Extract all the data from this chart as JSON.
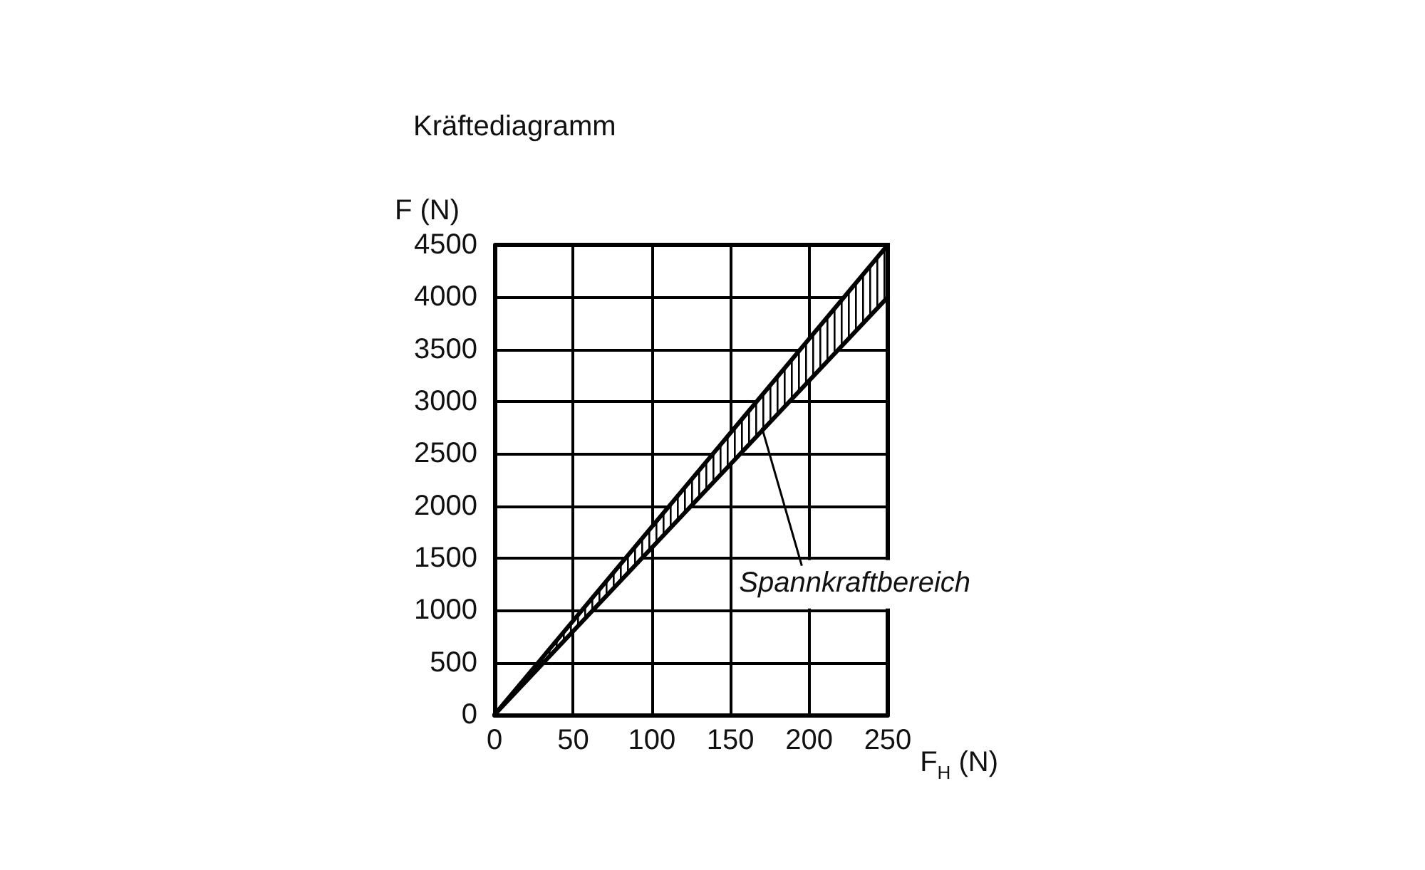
{
  "chart_data": {
    "type": "line",
    "title": "Kräftediagramm",
    "xlabel": "F$_{H}$ (N)",
    "ylabel": "F (N)",
    "x": [
      0,
      250
    ],
    "series": [
      {
        "color": "#000000",
        "values": [
          0,
          4500
        ],
        "lower": [
          0,
          4000
        ],
        "upper": [
          0,
          4500
        ]
      },
      {
        "color": "#000000",
        "values": [
          0,
          4000
        ]
      }
    ],
    "xlim": [
      0,
      250
    ],
    "xticks": [
      0,
      50,
      100,
      150,
      200,
      250
    ],
    "ylim": [
      0,
      4500
    ],
    "yticks": [
      0,
      500,
      1000,
      1500,
      2000,
      2500,
      3000,
      3500,
      4000,
      4500
    ],
    "grid": true,
    "marker": "none",
    "line_style": "solid",
    "annotations": [
      {
        "text": "Spannkraftbereich",
        "x": 170,
        "y": 2750
      }
    ]
  }
}
